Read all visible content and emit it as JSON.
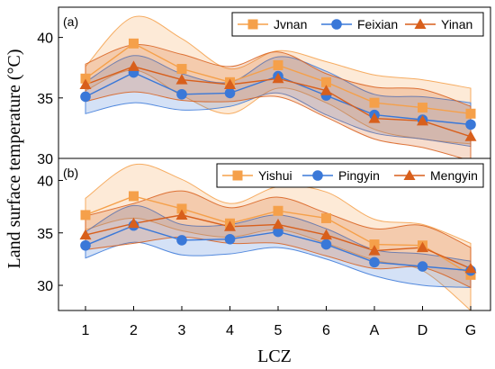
{
  "chart_data": {
    "type": "line",
    "ylabel": "Land surface temperature (°C)",
    "xlabel": "LCZ",
    "categories": [
      "1",
      "2",
      "3",
      "4",
      "5",
      "6",
      "A",
      "D",
      "G"
    ],
    "panels": [
      {
        "label": "(a)",
        "ylim": [
          30,
          42.5
        ],
        "yticks": [
          30,
          35,
          40
        ],
        "legend_position": "top-right",
        "series": [
          {
            "name": "Jvnan",
            "marker": "square",
            "color": "#f5a04a",
            "values": [
              36.6,
              39.5,
              37.4,
              36.3,
              37.7,
              36.3,
              34.6,
              34.2,
              33.7
            ],
            "upper": [
              37.6,
              41.7,
              39.9,
              37.4,
              38.9,
              38.0,
              36.9,
              36.5,
              35.8
            ],
            "lower": [
              35.6,
              37.3,
              35.2,
              33.7,
              35.8,
              34.6,
              32.4,
              31.6,
              31.2
            ]
          },
          {
            "name": "Feixian",
            "marker": "circle",
            "color": "#3a78d8",
            "values": [
              35.1,
              37.1,
              35.3,
              35.4,
              36.8,
              35.2,
              33.6,
              33.2,
              32.8
            ],
            "upper": [
              36.3,
              38.5,
              37.0,
              36.3,
              38.4,
              37.2,
              35.3,
              35.1,
              34.6
            ],
            "lower": [
              33.7,
              34.6,
              34.0,
              34.3,
              35.4,
              33.6,
              32.1,
              31.6,
              31.0
            ]
          },
          {
            "name": "Yinan",
            "marker": "triangle",
            "color": "#d85f1c",
            "values": [
              36.1,
              37.6,
              36.5,
              36.1,
              36.6,
              35.6,
              33.3,
              33.1,
              31.8
            ],
            "upper": [
              37.8,
              39.4,
              38.6,
              37.6,
              38.8,
              37.0,
              35.9,
              35.7,
              34.3
            ],
            "lower": [
              34.7,
              35.5,
              34.8,
              34.7,
              35.1,
              33.4,
              31.6,
              30.9,
              29.8
            ]
          }
        ]
      },
      {
        "label": "(b)",
        "ylim": [
          27.6,
          42.1
        ],
        "yticks": [
          30,
          35,
          40
        ],
        "legend_position": "top-right",
        "series": [
          {
            "name": "Yishui",
            "marker": "square",
            "color": "#f5a04a",
            "values": [
              36.7,
              38.5,
              37.3,
              35.9,
              37.1,
              36.4,
              33.9,
              33.8,
              31.0
            ],
            "upper": [
              38.3,
              41.5,
              40.1,
              37.8,
              39.4,
              38.9,
              36.3,
              35.8,
              34.0
            ],
            "lower": [
              35.3,
              36.4,
              35.2,
              34.6,
              35.3,
              34.0,
              32.4,
              31.4,
              27.6
            ]
          },
          {
            "name": "Pingyin",
            "marker": "circle",
            "color": "#3a78d8",
            "values": [
              33.8,
              35.7,
              34.3,
              34.4,
              35.1,
              33.9,
              32.2,
              31.8,
              31.4
            ],
            "upper": [
              35.1,
              37.6,
              35.8,
              35.8,
              36.7,
              35.4,
              33.4,
              33.0,
              32.3
            ],
            "lower": [
              32.6,
              34.1,
              32.9,
              33.0,
              33.6,
              32.5,
              30.9,
              30.0,
              29.8
            ]
          },
          {
            "name": "Mengyin",
            "marker": "triangle",
            "color": "#d85f1c",
            "values": [
              34.8,
              35.9,
              36.7,
              35.6,
              35.8,
              34.8,
              33.3,
              33.6,
              31.6
            ],
            "upper": [
              36.6,
              37.8,
              39.0,
              37.4,
              38.4,
              36.9,
              35.4,
              35.7,
              33.6
            ],
            "lower": [
              33.4,
              34.0,
              34.6,
              34.0,
              34.0,
              32.8,
              31.6,
              31.7,
              29.8
            ]
          }
        ]
      }
    ]
  }
}
